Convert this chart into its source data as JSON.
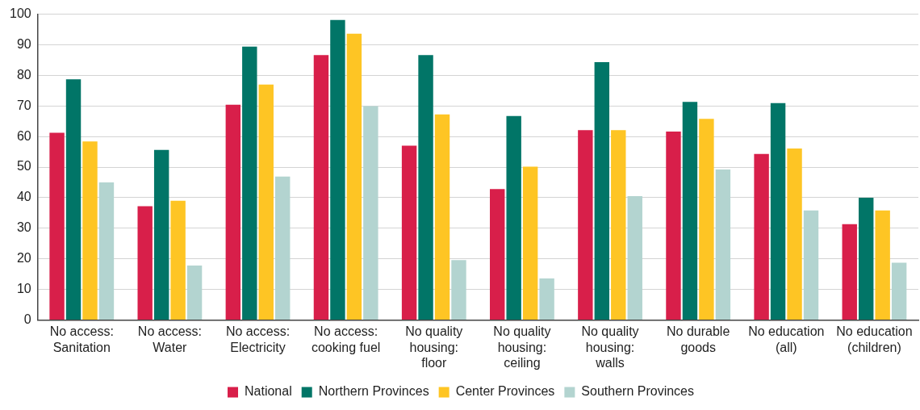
{
  "chart_data": {
    "type": "bar",
    "categories": [
      "No access:\nSanitation",
      "No access:\nWater",
      "No access:\nElectricity",
      "No access:\ncooking fuel",
      "No quality\nhousing:\nfloor",
      "No quality\nhousing:\nceiling",
      "No quality\nhousing:\nwalls",
      "No durable\ngoods",
      "No education\n(all)",
      "No education\n(children)"
    ],
    "series": [
      {
        "name": "National",
        "color": "#d81f4a",
        "values": [
          61.2,
          37.2,
          70.4,
          86.6,
          57.0,
          42.8,
          62.1,
          61.6,
          54.3,
          31.3
        ]
      },
      {
        "name": "Northern Provinces",
        "color": "#017567",
        "values": [
          78.7,
          55.6,
          89.4,
          98.1,
          86.6,
          66.7,
          84.3,
          71.3,
          70.9,
          40.0
        ]
      },
      {
        "name": "Center Provinces",
        "color": "#fec524",
        "values": [
          58.4,
          39.0,
          77.0,
          93.6,
          67.2,
          50.1,
          62.1,
          65.8,
          56.1,
          35.8
        ]
      },
      {
        "name": "Southern Provinces",
        "color": "#b3d4d0",
        "values": [
          45.0,
          17.8,
          46.9,
          69.9,
          19.6,
          13.6,
          40.5,
          49.2,
          35.8,
          18.7
        ]
      }
    ],
    "ylim": [
      0,
      100
    ],
    "yticks": [
      0,
      10,
      20,
      30,
      40,
      50,
      60,
      70,
      80,
      90,
      100
    ],
    "grid": "y",
    "legend": "bottom"
  }
}
